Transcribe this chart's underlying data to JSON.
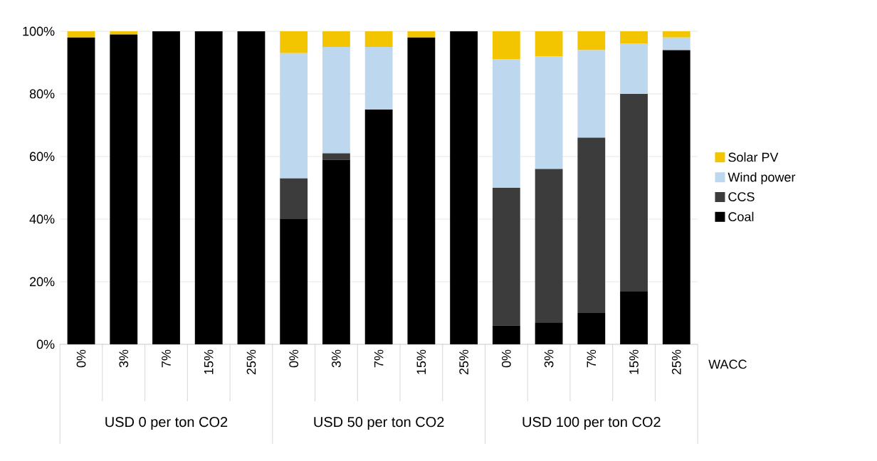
{
  "chart_data": {
    "type": "bar",
    "stacked": true,
    "grid": "y",
    "legend": "right",
    "xlabel": "WACC",
    "categories": [
      "0%",
      "3%",
      "7%",
      "15%",
      "25%",
      "0%",
      "3%",
      "7%",
      "15%",
      "25%",
      "0%",
      "3%",
      "7%",
      "15%",
      "25%"
    ],
    "series": [
      {
        "name": "Coal",
        "color": "#000000",
        "values": [
          98,
          99,
          100,
          100,
          100,
          40,
          59,
          75,
          98,
          100,
          6,
          7,
          10,
          17,
          94
        ]
      },
      {
        "name": "CCS",
        "color": "#3c3c3c",
        "values": [
          0,
          0,
          0,
          0,
          0,
          13,
          2,
          0,
          0,
          0,
          44,
          49,
          56,
          63,
          0
        ]
      },
      {
        "name": "Wind power",
        "color": "#bdd7ee",
        "values": [
          0,
          0,
          0,
          0,
          0,
          40,
          34,
          20,
          0,
          0,
          41,
          36,
          28,
          16,
          4
        ]
      },
      {
        "name": "Solar PV",
        "color": "#f2c500",
        "values": [
          2,
          1,
          0,
          0,
          0,
          7,
          5,
          5,
          2,
          0,
          9,
          8,
          6,
          4,
          2
        ]
      }
    ],
    "ylim": [
      0,
      100
    ],
    "yticks": [
      {
        "value": 0,
        "label": "0%"
      },
      {
        "value": 20,
        "label": "20%"
      },
      {
        "value": 40,
        "label": "40%"
      },
      {
        "value": 60,
        "label": "60%"
      },
      {
        "value": 80,
        "label": "80%"
      },
      {
        "value": 100,
        "label": "100%"
      }
    ],
    "annotations": [
      "USD 0 per ton CO2",
      "USD 50 per ton CO2",
      "USD 100 per ton CO2"
    ]
  }
}
